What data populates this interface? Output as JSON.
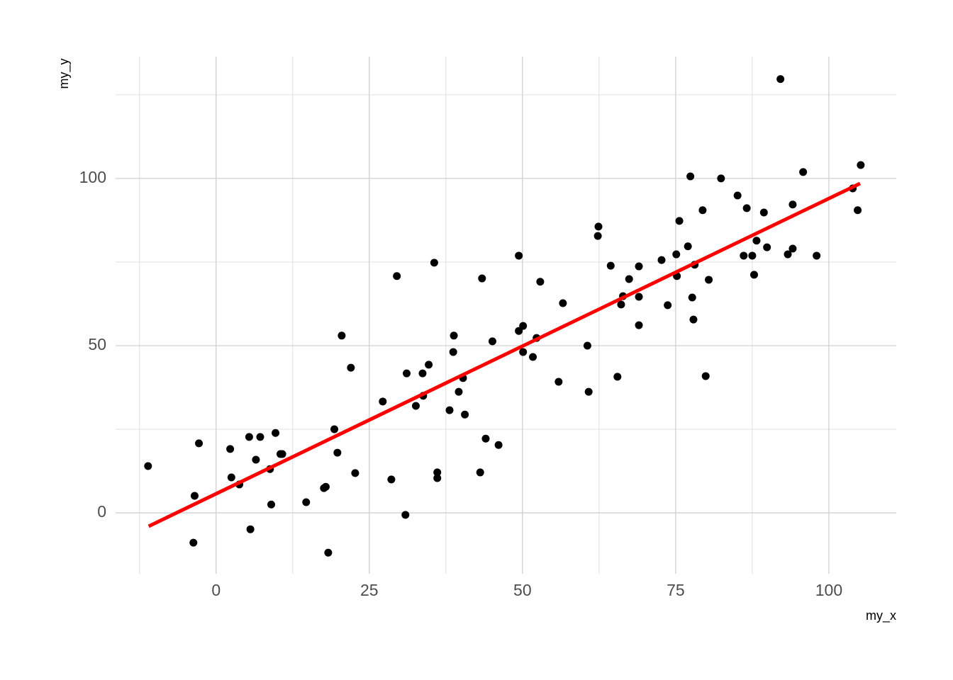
{
  "chart_data": {
    "type": "scatter",
    "x_label": "my_x",
    "y_label": "my_y",
    "xlim": [
      -16.4,
      111.0
    ],
    "ylim": [
      -18.2,
      136.4
    ],
    "xticks": [
      0,
      25,
      50,
      75,
      100
    ],
    "yticks": [
      0,
      50,
      100
    ],
    "x_minor_grid": [
      -12.5,
      12.5,
      37.5,
      62.5,
      87.5
    ],
    "y_minor_grid": [
      25,
      75,
      125
    ],
    "grid": true,
    "color": "#000000",
    "x": [
      -11.1,
      -3.5,
      -3.7,
      -2.8,
      2.3,
      2.5,
      3.8,
      5.4,
      5.6,
      6.5,
      7.2,
      8.8,
      9.0,
      9.7,
      10.5,
      10.8,
      14.7,
      17.6,
      17.9,
      18.3,
      19.3,
      19.8,
      20.5,
      22.0,
      22.7,
      27.2,
      28.6,
      29.5,
      30.9,
      31.1,
      32.6,
      33.7,
      33.8,
      34.7,
      35.6,
      36.1,
      36.1,
      38.1,
      38.7,
      38.8,
      39.6,
      40.3,
      40.6,
      43.1,
      43.4,
      44.0,
      45.1,
      46.1,
      49.4,
      49.4,
      50.1,
      50.1,
      51.7,
      52.3,
      52.9,
      55.9,
      56.6,
      60.6,
      60.8,
      62.3,
      62.4,
      64.4,
      65.5,
      66.1,
      66.4,
      67.4,
      69.0,
      69.0,
      69.0,
      72.7,
      73.7,
      75.1,
      75.2,
      75.6,
      77.0,
      77.4,
      77.7,
      77.9,
      78.1,
      79.4,
      79.9,
      80.4,
      82.4,
      85.1,
      86.1,
      86.6,
      87.5,
      87.8,
      88.2,
      89.4,
      89.9,
      92.1,
      93.3,
      94.1,
      94.1,
      95.8,
      98.0,
      103.9,
      104.7,
      105.2
    ],
    "y": [
      14.0,
      5.1,
      -8.9,
      20.8,
      19.1,
      10.6,
      8.5,
      22.7,
      -4.9,
      15.9,
      22.7,
      13.1,
      2.5,
      23.9,
      17.6,
      17.6,
      3.2,
      7.4,
      7.8,
      -11.9,
      25.0,
      18.0,
      53.0,
      43.4,
      11.9,
      33.3,
      10.0,
      70.8,
      -0.6,
      41.7,
      32.0,
      41.7,
      35.0,
      44.3,
      74.8,
      12.1,
      10.4,
      30.7,
      48.1,
      53.0,
      36.2,
      40.3,
      29.4,
      12.1,
      70.1,
      22.2,
      51.3,
      20.3,
      54.4,
      76.9,
      55.9,
      48.1,
      46.6,
      52.3,
      69.1,
      39.2,
      62.7,
      50.0,
      36.2,
      82.8,
      85.6,
      73.9,
      40.7,
      62.3,
      64.8,
      69.9,
      73.7,
      64.6,
      56.1,
      75.6,
      62.1,
      77.3,
      70.8,
      87.3,
      79.7,
      100.6,
      64.4,
      57.8,
      74.2,
      90.5,
      40.9,
      69.7,
      100.0,
      94.9,
      76.9,
      91.1,
      76.9,
      71.2,
      81.4,
      89.8,
      79.4,
      129.7,
      77.3,
      79.0,
      92.2,
      101.9,
      76.9,
      97.0,
      90.5,
      104.0
    ],
    "fit_line": {
      "x": [
        -11.0,
        105.1
      ],
      "y": [
        -4.0,
        98.5
      ],
      "color": "#ff0000"
    }
  }
}
